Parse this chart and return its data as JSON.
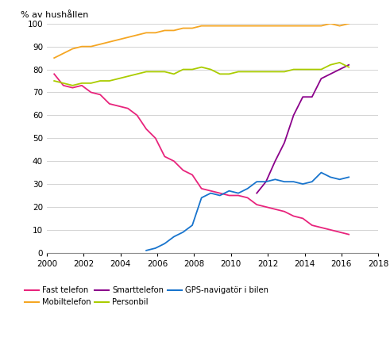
{
  "ylabel": "% av hushållen",
  "xlim": [
    2000,
    2018
  ],
  "ylim": [
    0,
    100
  ],
  "xticks": [
    2000,
    2002,
    2004,
    2006,
    2008,
    2010,
    2012,
    2014,
    2016,
    2018
  ],
  "yticks": [
    0,
    10,
    20,
    30,
    40,
    50,
    60,
    70,
    80,
    90,
    100
  ],
  "series": {
    "Fast telefon": {
      "color": "#E8247C",
      "linestyle": "-",
      "x": [
        2000.4,
        2000.9,
        2001.4,
        2001.9,
        2002.4,
        2002.9,
        2003.4,
        2003.9,
        2004.4,
        2004.9,
        2005.4,
        2005.9,
        2006.4,
        2006.9,
        2007.4,
        2007.9,
        2008.4,
        2008.9,
        2009.4,
        2009.9,
        2010.4,
        2010.9,
        2011.4,
        2011.9,
        2012.4,
        2012.9,
        2013.4,
        2013.9,
        2014.4,
        2014.9,
        2015.4,
        2015.9,
        2016.4
      ],
      "y": [
        78,
        73,
        72,
        73,
        70,
        69,
        65,
        64,
        63,
        60,
        54,
        50,
        42,
        40,
        36,
        34,
        28,
        27,
        26,
        25,
        25,
        24,
        21,
        20,
        19,
        18,
        16,
        15,
        12,
        11,
        10,
        9,
        8
      ]
    },
    "Mobiltelefon": {
      "color": "#F5A623",
      "linestyle": "-",
      "x": [
        2000.4,
        2000.9,
        2001.4,
        2001.9,
        2002.4,
        2002.9,
        2003.4,
        2003.9,
        2004.4,
        2004.9,
        2005.4,
        2005.9,
        2006.4,
        2006.9,
        2007.4,
        2007.9,
        2008.4,
        2008.9,
        2009.4,
        2009.9,
        2010.4,
        2010.9,
        2011.4,
        2011.9,
        2012.4,
        2012.9,
        2013.4,
        2013.9,
        2014.4,
        2014.9,
        2015.4,
        2015.9,
        2016.4
      ],
      "y": [
        85,
        87,
        89,
        90,
        90,
        91,
        92,
        93,
        94,
        95,
        96,
        96,
        97,
        97,
        98,
        98,
        99,
        99,
        99,
        99,
        99,
        99,
        99,
        99,
        99,
        99,
        99,
        99,
        99,
        99,
        100,
        99,
        100
      ]
    },
    "Smarttelefon": {
      "color": "#8B008B",
      "linestyle": "-",
      "x": [
        2011.4,
        2011.9,
        2012.4,
        2012.9,
        2013.4,
        2013.9,
        2014.4,
        2014.9,
        2015.4,
        2015.9,
        2016.4
      ],
      "y": [
        26,
        31,
        40,
        48,
        60,
        68,
        68,
        76,
        78,
        80,
        82
      ]
    },
    "Personbil": {
      "color": "#AACC00",
      "linestyle": "-",
      "x": [
        2000.4,
        2000.9,
        2001.4,
        2001.9,
        2002.4,
        2002.9,
        2003.4,
        2003.9,
        2004.4,
        2004.9,
        2005.4,
        2005.9,
        2006.4,
        2006.9,
        2007.4,
        2007.9,
        2008.4,
        2008.9,
        2009.4,
        2009.9,
        2010.4,
        2010.9,
        2011.4,
        2011.9,
        2012.4,
        2012.9,
        2013.4,
        2013.9,
        2014.4,
        2014.9,
        2015.4,
        2015.9,
        2016.4
      ],
      "y": [
        75,
        74,
        73,
        74,
        74,
        75,
        75,
        76,
        77,
        78,
        79,
        79,
        79,
        78,
        80,
        80,
        81,
        80,
        78,
        78,
        79,
        79,
        79,
        79,
        79,
        79,
        80,
        80,
        80,
        80,
        82,
        83,
        81
      ]
    },
    "GPS-navigatör i bilen": {
      "color": "#1874CD",
      "linestyle": "-",
      "x": [
        2005.4,
        2005.9,
        2006.4,
        2006.9,
        2007.4,
        2007.9,
        2008.4,
        2008.9,
        2009.4,
        2009.9,
        2010.4,
        2010.9,
        2011.4,
        2011.9,
        2012.4,
        2012.9,
        2013.4,
        2013.9,
        2014.4,
        2014.9,
        2015.4,
        2015.9,
        2016.4
      ],
      "y": [
        1,
        2,
        4,
        7,
        9,
        12,
        24,
        26,
        25,
        27,
        26,
        28,
        31,
        31,
        32,
        31,
        31,
        30,
        31,
        35,
        33,
        32,
        33
      ]
    }
  },
  "legend_row1": [
    "Fast telefon",
    "Mobiltelefon",
    "Smarttelefon"
  ],
  "legend_row2": [
    "Personbil",
    "GPS-navigatör i bilen"
  ]
}
